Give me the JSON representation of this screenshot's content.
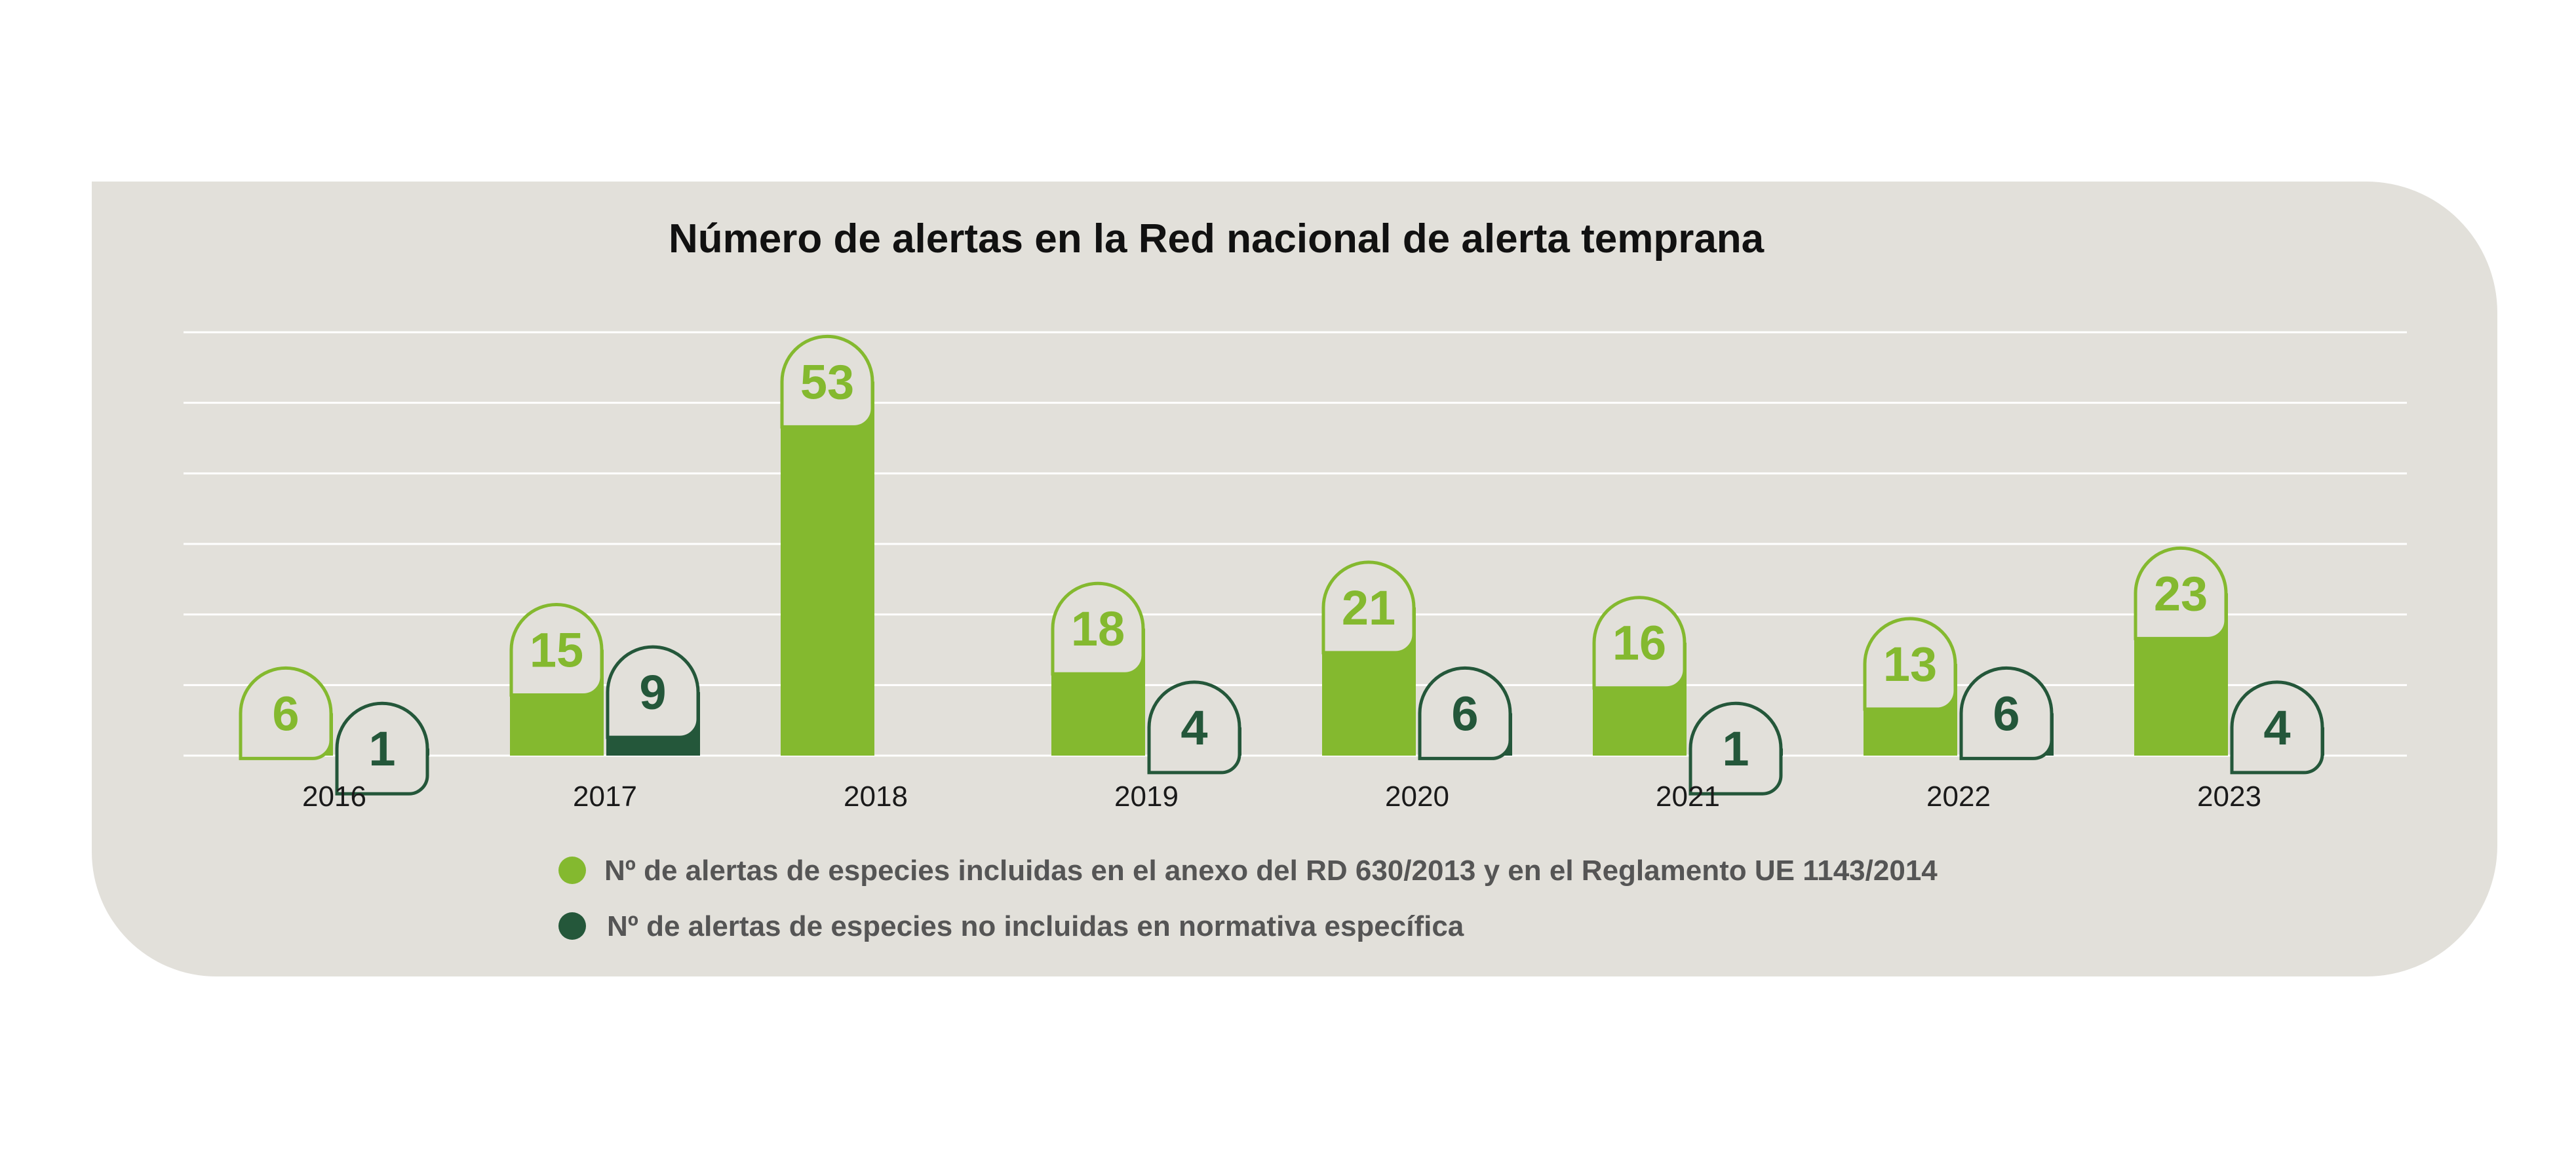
{
  "chart_data": {
    "type": "bar",
    "title": "Número de alertas en la Red nacional de alerta temprana",
    "categories": [
      "2016",
      "2017",
      "2018",
      "2019",
      "2020",
      "2021",
      "2022",
      "2023"
    ],
    "series": [
      {
        "name": "Nº de alertas de especies incluidas en el anexo del RD 630/2013 y en el Reglamento UE 1143/2014",
        "color": "#84b92f",
        "values": [
          6,
          15,
          53,
          18,
          21,
          16,
          13,
          23
        ]
      },
      {
        "name": "Nº de alertas de especies no incluidas en normativa específica",
        "color": "#24573a",
        "values": [
          1,
          9,
          null,
          4,
          6,
          1,
          6,
          4
        ]
      }
    ],
    "ylim": [
      0,
      60
    ],
    "grid": true,
    "legend_position": "bottom"
  },
  "colors": {
    "panel": "#e2e0da",
    "gridline": "#ffffff",
    "bubble_fill": "#e2e0da"
  }
}
